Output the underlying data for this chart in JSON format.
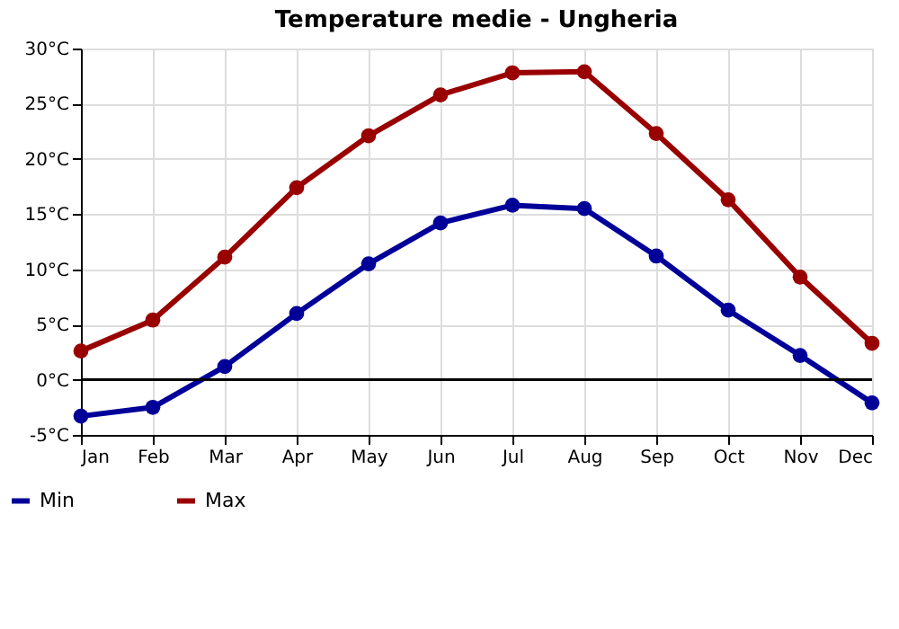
{
  "chart_data": {
    "type": "line",
    "title": "Temperature medie - Ungheria",
    "categories": [
      "Jan",
      "Feb",
      "Mar",
      "Apr",
      "May",
      "Jun",
      "Jul",
      "Aug",
      "Sep",
      "Oct",
      "Nov",
      "Dec"
    ],
    "series": [
      {
        "name": "Min",
        "color": "#000099",
        "values": [
          -3.3,
          -2.5,
          1.2,
          6.0,
          10.5,
          14.2,
          15.8,
          15.5,
          11.2,
          6.3,
          2.2,
          -2.1
        ]
      },
      {
        "name": "Max",
        "color": "#990000",
        "values": [
          2.6,
          5.4,
          11.1,
          17.4,
          22.1,
          25.8,
          27.8,
          27.9,
          22.3,
          16.3,
          9.3,
          3.3
        ]
      }
    ],
    "ylim": [
      -5,
      30
    ],
    "yticks": [
      {
        "value": -5,
        "label": "-5°C"
      },
      {
        "value": 0,
        "label": "0°C"
      },
      {
        "value": 5,
        "label": "5°C"
      },
      {
        "value": 10,
        "label": "10°C"
      },
      {
        "value": 15,
        "label": "15°C"
      },
      {
        "value": 20,
        "label": "20°C"
      },
      {
        "value": 25,
        "label": "25°C"
      },
      {
        "value": 30,
        "label": "30°C"
      }
    ],
    "ref_lines": [
      {
        "axis": "y",
        "value": 0,
        "color": "#000000"
      }
    ],
    "grid": true,
    "legend": "bottom left",
    "marker": "circle",
    "line_style": "solid"
  }
}
